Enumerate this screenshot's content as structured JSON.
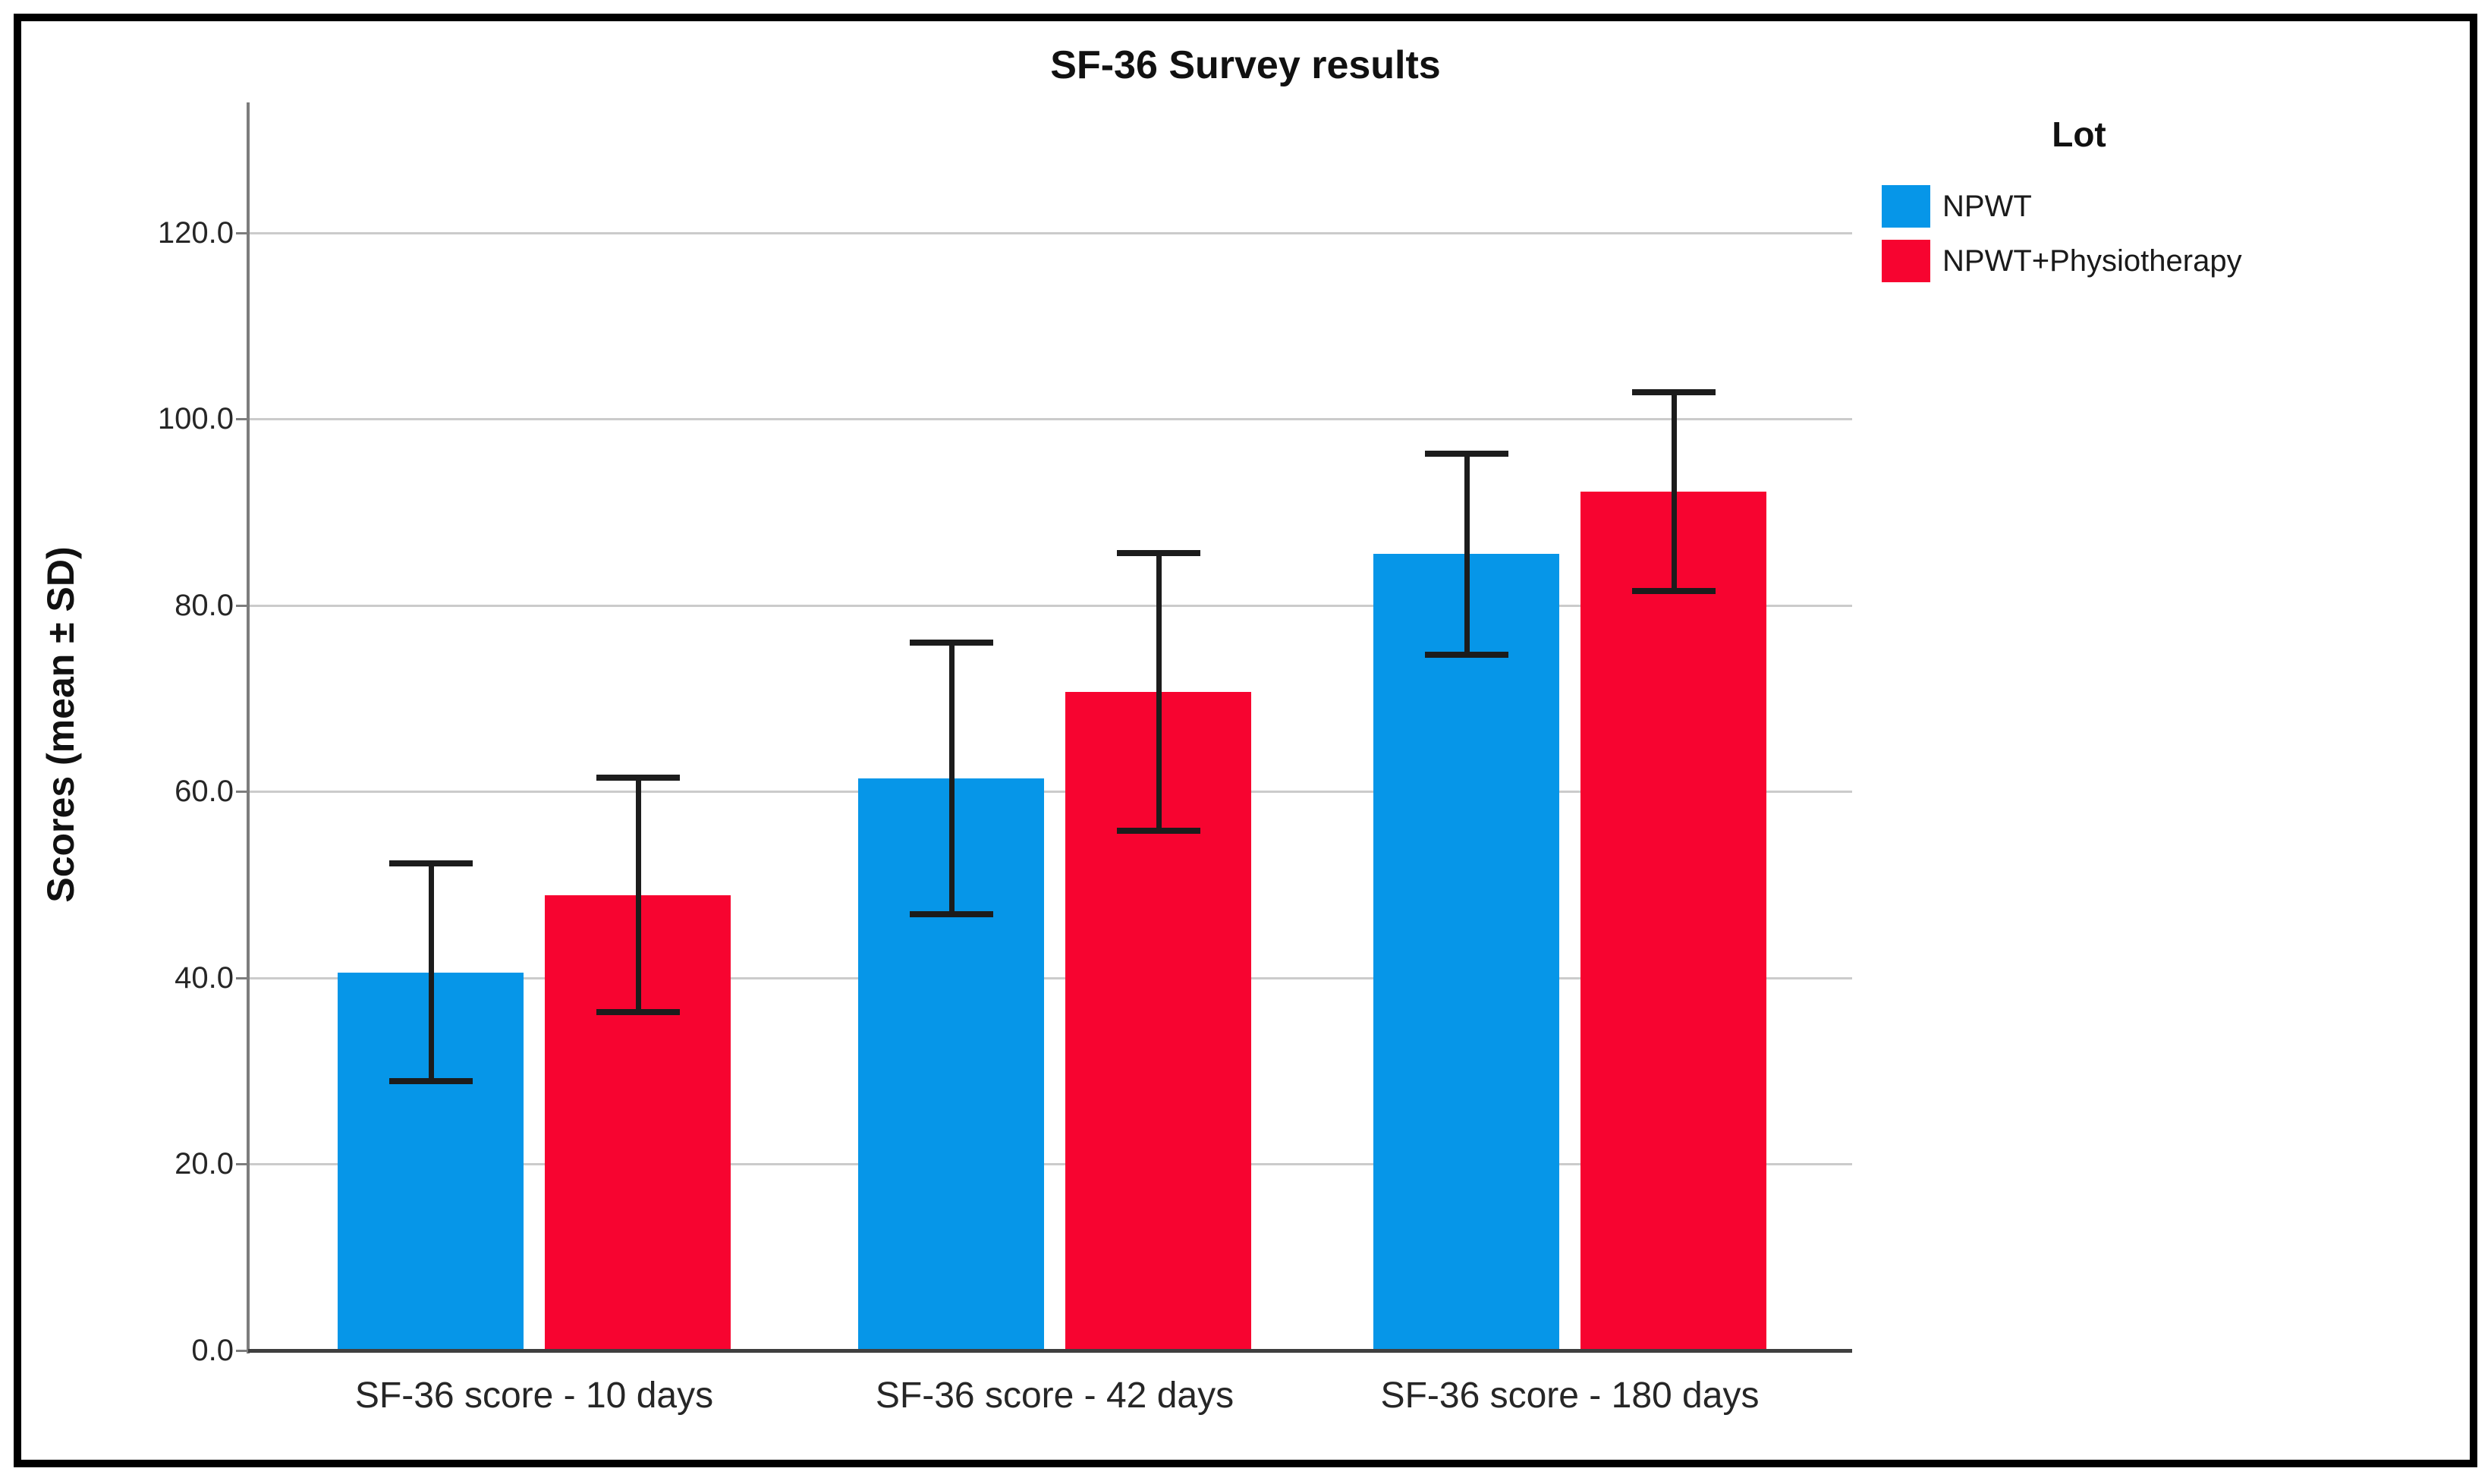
{
  "figure": {
    "title": "SF-36 Survey results"
  },
  "chart_data": {
    "type": "bar",
    "title": "SF-36 Survey results",
    "xlabel": "",
    "ylabel": "Scores (mean ± SD)",
    "categories": [
      "SF-36 score - 10 days",
      "SF-36 score - 42 days",
      "SF-36 score - 180 days"
    ],
    "series": [
      {
        "name": "NPWT",
        "color": "#0696e8",
        "values": [
          40.6,
          61.4,
          85.5
        ],
        "sd": [
          11.7,
          14.6,
          10.8
        ]
      },
      {
        "name": "NPWT+Physiotherapy",
        "color": "#f70430",
        "values": [
          48.9,
          70.7,
          92.2
        ],
        "sd": [
          12.6,
          14.9,
          10.7
        ]
      }
    ],
    "error_bars": "mean ± SD whiskers with caps",
    "ylim": [
      0,
      134
    ],
    "yticks": [
      0,
      20,
      40,
      60,
      80,
      100,
      120
    ],
    "ytick_labels": [
      "0.0",
      "20.0",
      "40.0",
      "60.0",
      "80.0",
      "100.0",
      "120.0"
    ],
    "grid": "horizontal",
    "legend": {
      "title": "Lot",
      "position": "top-right",
      "items": [
        {
          "label": "NPWT",
          "color": "#0696e8"
        },
        {
          "label": "NPWT+Physiotherapy",
          "color": "#f70430"
        }
      ]
    }
  }
}
